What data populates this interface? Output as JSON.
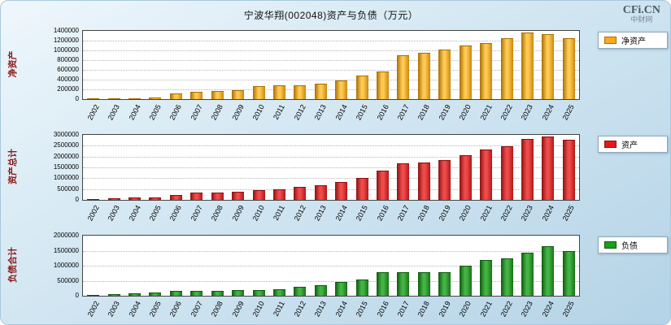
{
  "header": {
    "title": "宁波华翔(002048)资产与负债（万元）",
    "logo": "CFi.CN",
    "logo_sub": "中财网"
  },
  "chart_data": [
    {
      "type": "bar",
      "name": "net-assets",
      "ylabel": "净资产",
      "legend": "净资产",
      "ylim": [
        0,
        1400000
      ],
      "ytick_labels": [
        "1400000",
        "1200000",
        "1000000",
        "800000",
        "600000",
        "400000",
        "200000",
        "0"
      ],
      "colors": {
        "swatch": "#FFA81C",
        "dark": "#A86E00",
        "light": "#FFC953",
        "end": "#C8880E"
      },
      "categories": [
        "2002",
        "2003",
        "2004",
        "2005",
        "2006",
        "2007",
        "2008",
        "2009",
        "2010",
        "2011",
        "2012",
        "2013",
        "2014",
        "2015",
        "2016",
        "2017",
        "2018",
        "2019",
        "2020",
        "2021",
        "2022",
        "2023",
        "2024",
        "2025"
      ],
      "values": [
        10000,
        15000,
        25000,
        40000,
        125000,
        145000,
        160000,
        180000,
        270000,
        285000,
        290000,
        320000,
        380000,
        485000,
        575000,
        900000,
        950000,
        1020000,
        1095000,
        1150000,
        1255000,
        1365000,
        1330000,
        1255000
      ]
    },
    {
      "type": "bar",
      "name": "total-assets",
      "ylabel": "资产总计",
      "legend": "资产",
      "ylim": [
        0,
        3000000
      ],
      "ytick_labels": [
        "3000000",
        "2500000",
        "2000000",
        "1500000",
        "1000000",
        "500000",
        "0"
      ],
      "colors": {
        "swatch": "#E81717",
        "dark": "#8B1010",
        "light": "#EF4B4B",
        "end": "#B01818"
      },
      "categories": [
        "2002",
        "2003",
        "2004",
        "2005",
        "2006",
        "2007",
        "2008",
        "2009",
        "2010",
        "2011",
        "2012",
        "2013",
        "2014",
        "2015",
        "2016",
        "2017",
        "2018",
        "2019",
        "2020",
        "2021",
        "2022",
        "2023",
        "2024",
        "2025"
      ],
      "values": [
        40000,
        80000,
        100000,
        120000,
        240000,
        320000,
        320000,
        360000,
        440000,
        480000,
        600000,
        680000,
        840000,
        1000000,
        1360000,
        1680000,
        1720000,
        1840000,
        2080000,
        2320000,
        2480000,
        2800000,
        2920000,
        2760000
      ]
    },
    {
      "type": "bar",
      "name": "total-liabilities",
      "ylabel": "负债合计",
      "legend": "负债",
      "ylim": [
        0,
        2000000
      ],
      "ytick_labels": [
        "2000000",
        "1500000",
        "1000000",
        "500000",
        "0"
      ],
      "colors": {
        "swatch": "#18A018",
        "dark": "#0E5A0E",
        "light": "#44B344",
        "end": "#187218"
      },
      "categories": [
        "2002",
        "2003",
        "2004",
        "2005",
        "2006",
        "2007",
        "2008",
        "2009",
        "2010",
        "2011",
        "2012",
        "2013",
        "2014",
        "2015",
        "2016",
        "2017",
        "2018",
        "2019",
        "2020",
        "2021",
        "2022",
        "2023",
        "2024",
        "2025"
      ],
      "values": [
        30000,
        60000,
        90000,
        120000,
        150000,
        175000,
        175000,
        180000,
        200000,
        230000,
        300000,
        360000,
        470000,
        530000,
        790000,
        790000,
        790000,
        790000,
        1000000,
        1180000,
        1240000,
        1440000,
        1650000,
        1500000
      ]
    }
  ]
}
